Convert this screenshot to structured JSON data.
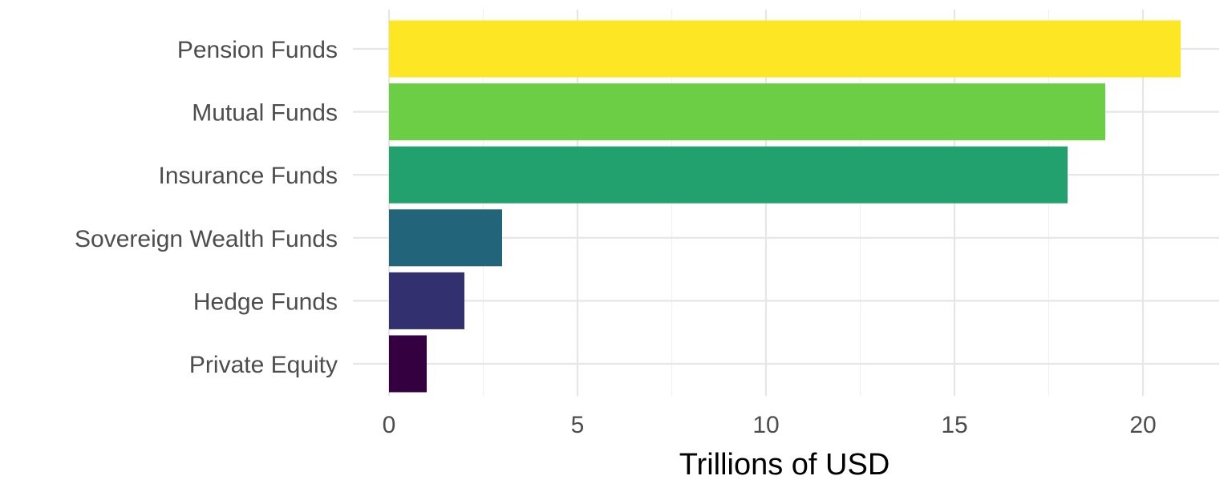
{
  "chart_data": {
    "type": "bar",
    "orientation": "horizontal",
    "categories": [
      "Pension Funds",
      "Mutual Funds",
      "Insurance Funds",
      "Sovereign Wealth Funds",
      "Hedge Funds",
      "Private Equity"
    ],
    "values": [
      21,
      19,
      18,
      3,
      2,
      1
    ],
    "colors": [
      "#FDE725",
      "#6CCE45",
      "#22A06E",
      "#22657A",
      "#33306F",
      "#340040"
    ],
    "xlabel": "Trillions of USD",
    "ylabel": "",
    "xlim": [
      0,
      22
    ],
    "x_ticks": [
      0,
      5,
      10,
      15,
      20
    ],
    "grid": true,
    "legend": "none"
  }
}
